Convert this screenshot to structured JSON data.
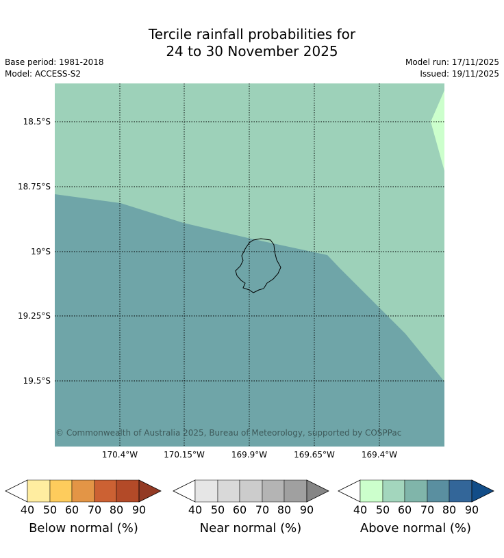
{
  "title": {
    "line1": "Tercile rainfall probabilities for",
    "line2": "24 to 30 November 2025"
  },
  "meta": {
    "base_period": "Base period: 1981-2018",
    "model": "Model: ACCESS-S2",
    "model_run": "Model run: 17/11/2025",
    "issued": "Issued: 19/11/2025"
  },
  "map": {
    "lat_labels": [
      "18.5°S",
      "18.75°S",
      "19°S",
      "19.25°S",
      "19.5°S"
    ],
    "lon_labels": [
      "170.4°W",
      "170.15°W",
      "169.9°W",
      "169.65°W",
      "169.4°W"
    ],
    "credit": "© Commonwealth of Australia 2025, Bureau of Meteorology, supported by COSPPac",
    "colors": {
      "above_50": "#9dd1b9",
      "above_60": "#6fa5a8",
      "above_40": "#ccffcc"
    }
  },
  "colorbars": [
    {
      "label": "Below normal (%)",
      "ticks": [
        "40",
        "50",
        "60",
        "70",
        "80",
        "90"
      ],
      "colors": [
        "#ffeda0",
        "#fecc5c",
        "#e39546",
        "#cc6133",
        "#b34a28"
      ],
      "over_color": "#933a24"
    },
    {
      "label": "Near normal (%)",
      "ticks": [
        "40",
        "50",
        "60",
        "70",
        "80",
        "90"
      ],
      "colors": [
        "#e6e6e6",
        "#d9d9d9",
        "#cccccc",
        "#b4b4b4",
        "#a0a0a0"
      ],
      "over_color": "#858585"
    },
    {
      "label": "Above normal (%)",
      "ticks": [
        "40",
        "50",
        "60",
        "70",
        "80",
        "90"
      ],
      "colors": [
        "#ccffcc",
        "#a3d6bd",
        "#80b5aa",
        "#5a8fa0",
        "#336699"
      ],
      "over_color": "#124d88"
    }
  ]
}
